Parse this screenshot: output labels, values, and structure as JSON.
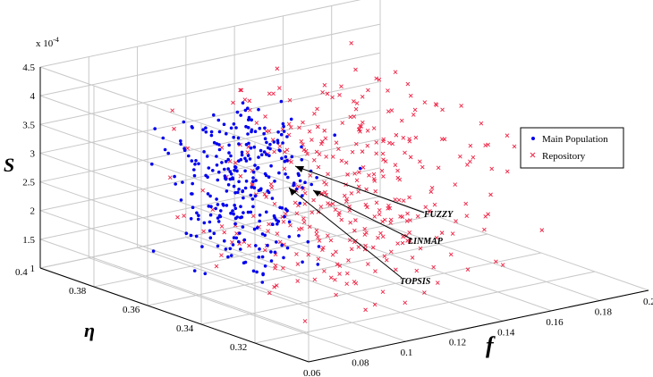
{
  "chart_data": {
    "type": "scatter3d",
    "title": "",
    "axes": {
      "f": {
        "label": "f",
        "ticks": [
          "0.06",
          "0.08",
          "0.1",
          "0.12",
          "0.14",
          "0.16",
          "0.18",
          "0.2"
        ],
        "range": [
          0.06,
          0.2
        ]
      },
      "eta": {
        "label": "η",
        "ticks": [
          "0.32",
          "0.34",
          "0.36",
          "0.38",
          "0.4"
        ],
        "range": [
          0.3,
          0.4
        ]
      },
      "S": {
        "label": "S",
        "ticks": [
          "1",
          "1.5",
          "2",
          "2.5",
          "3",
          "3.5",
          "4",
          "4.5"
        ],
        "range": [
          1,
          4.5
        ],
        "multiplier": "x 10-4"
      }
    },
    "grid": true,
    "legend": {
      "position": "right",
      "entries": [
        "Main Population",
        "Repository"
      ]
    },
    "series": [
      {
        "name": "Main Population",
        "marker": "dot",
        "color": "#0000ee",
        "count": 300,
        "cluster": {
          "f": [
            0.07,
            0.13
          ],
          "eta": [
            0.33,
            0.39
          ],
          "S": [
            1.3,
            4.0
          ]
        }
      },
      {
        "name": "Repository",
        "marker": "x",
        "color": "#ee2244",
        "count": 360,
        "cluster": {
          "f": [
            0.06,
            0.19
          ],
          "eta": [
            0.3,
            0.39
          ],
          "S": [
            1.0,
            4.5
          ]
        }
      }
    ],
    "annotations": [
      {
        "text": "FUZZY"
      },
      {
        "text": "LINMAP"
      },
      {
        "text": "TOPSIS"
      }
    ]
  },
  "labels": {
    "s_axis": "S",
    "eta_axis": "η",
    "f_axis": "f",
    "multiplier_base": "x 10",
    "multiplier_exp": "-4",
    "legend_main": "Main Population",
    "legend_repo": "Repository",
    "fuzzy": "FUZZY",
    "linmap": "LINMAP",
    "topsis": "TOPSIS"
  }
}
